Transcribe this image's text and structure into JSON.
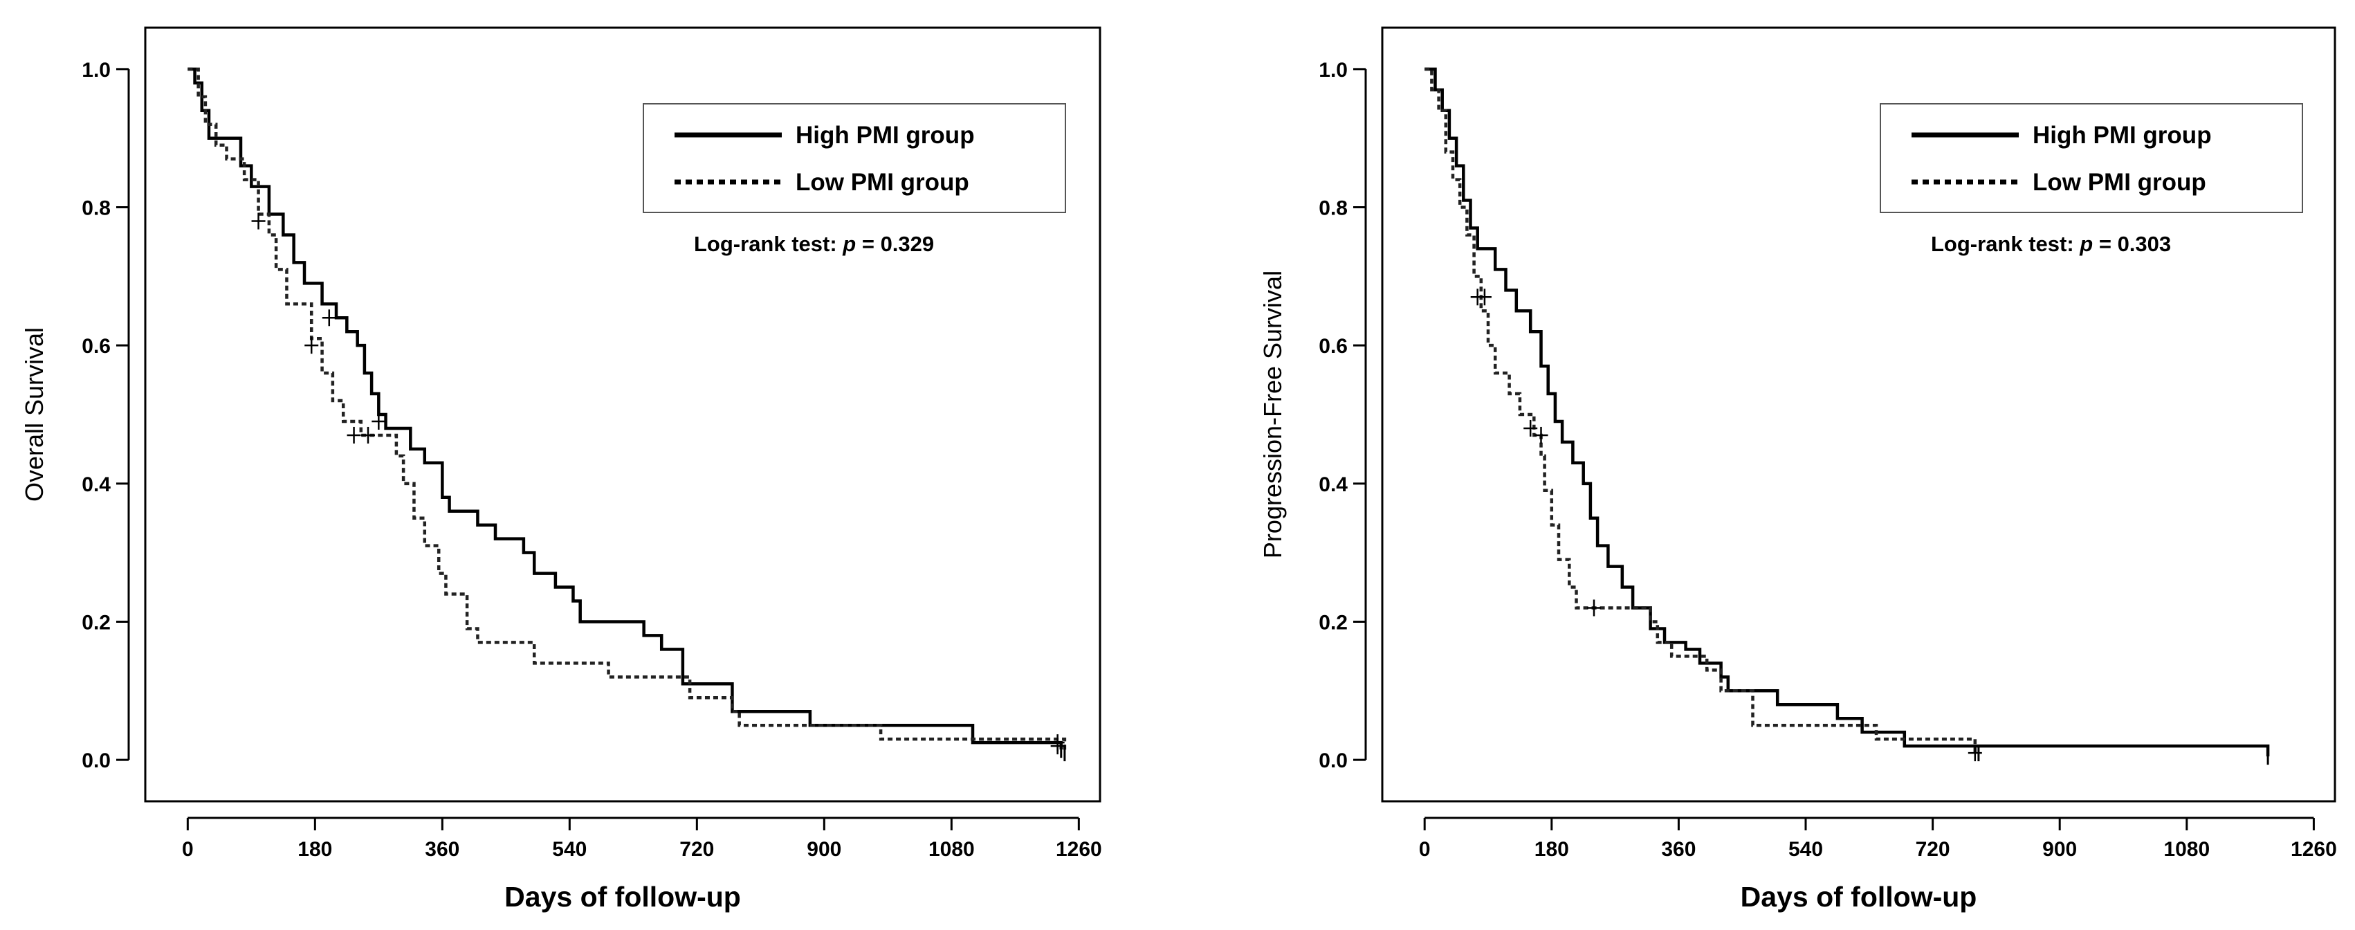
{
  "chart_data": [
    {
      "type": "line",
      "subtype": "kaplan-meier",
      "title": "",
      "xlabel": "Days of follow-up",
      "ylabel": "Overall Survival",
      "xlim": [
        -60,
        1290
      ],
      "ylim": [
        -0.06,
        1.06
      ],
      "xticks": [
        0,
        180,
        360,
        540,
        720,
        900,
        1080,
        1260
      ],
      "yticks": [
        0.0,
        0.2,
        0.4,
        0.6,
        0.8,
        1.0
      ],
      "legend": {
        "placement": "top-right",
        "high_label": "High PMI group",
        "low_label": "Low PMI group"
      },
      "annotation": {
        "prefix": "Log-rank test: ",
        "p": "p",
        "suffix": " = 0.329"
      },
      "series": [
        {
          "name": "High PMI group",
          "style": "solid",
          "steps": [
            [
              0,
              1.0
            ],
            [
              10,
              0.98
            ],
            [
              20,
              0.94
            ],
            [
              30,
              0.9
            ],
            [
              75,
              0.86
            ],
            [
              90,
              0.83
            ],
            [
              115,
              0.79
            ],
            [
              135,
              0.76
            ],
            [
              150,
              0.72
            ],
            [
              165,
              0.69
            ],
            [
              190,
              0.66
            ],
            [
              210,
              0.64
            ],
            [
              225,
              0.62
            ],
            [
              240,
              0.6
            ],
            [
              250,
              0.56
            ],
            [
              260,
              0.53
            ],
            [
              270,
              0.5
            ],
            [
              280,
              0.48
            ],
            [
              315,
              0.45
            ],
            [
              335,
              0.43
            ],
            [
              360,
              0.38
            ],
            [
              370,
              0.36
            ],
            [
              410,
              0.34
            ],
            [
              435,
              0.32
            ],
            [
              475,
              0.3
            ],
            [
              490,
              0.27
            ],
            [
              520,
              0.25
            ],
            [
              545,
              0.23
            ],
            [
              555,
              0.2
            ],
            [
              645,
              0.18
            ],
            [
              670,
              0.16
            ],
            [
              700,
              0.11
            ],
            [
              770,
              0.07
            ],
            [
              880,
              0.05
            ],
            [
              1110,
              0.025
            ],
            [
              1235,
              0.015
            ]
          ],
          "end_x": 1235,
          "censored": [
            [
              200,
              0.64
            ],
            [
              270,
              0.49
            ],
            [
              1230,
              0.025
            ]
          ]
        },
        {
          "name": "Low PMI group",
          "style": "dotted",
          "steps": [
            [
              0,
              1.0
            ],
            [
              15,
              0.96
            ],
            [
              25,
              0.92
            ],
            [
              40,
              0.89
            ],
            [
              55,
              0.87
            ],
            [
              80,
              0.84
            ],
            [
              100,
              0.79
            ],
            [
              115,
              0.76
            ],
            [
              125,
              0.71
            ],
            [
              140,
              0.66
            ],
            [
              175,
              0.61
            ],
            [
              190,
              0.56
            ],
            [
              205,
              0.52
            ],
            [
              220,
              0.49
            ],
            [
              245,
              0.47
            ],
            [
              295,
              0.44
            ],
            [
              305,
              0.4
            ],
            [
              320,
              0.35
            ],
            [
              335,
              0.31
            ],
            [
              355,
              0.27
            ],
            [
              365,
              0.24
            ],
            [
              395,
              0.19
            ],
            [
              410,
              0.17
            ],
            [
              490,
              0.14
            ],
            [
              595,
              0.12
            ],
            [
              710,
              0.09
            ],
            [
              770,
              0.07
            ],
            [
              780,
              0.05
            ],
            [
              980,
              0.03
            ],
            [
              1240,
              0.01
            ]
          ],
          "end_x": 1240,
          "censored": [
            [
              100,
              0.78
            ],
            [
              175,
              0.6
            ],
            [
              235,
              0.47
            ],
            [
              255,
              0.47
            ],
            [
              1230,
              0.02
            ]
          ]
        }
      ]
    },
    {
      "type": "line",
      "subtype": "kaplan-meier",
      "title": "",
      "xlabel": "Days of follow-up",
      "ylabel": "Progression-Free Survival",
      "xlim": [
        -60,
        1290
      ],
      "ylim": [
        -0.06,
        1.06
      ],
      "xticks": [
        0,
        180,
        360,
        540,
        720,
        900,
        1080,
        1260
      ],
      "yticks": [
        0.0,
        0.2,
        0.4,
        0.6,
        0.8,
        1.0
      ],
      "legend": {
        "placement": "top-right",
        "high_label": "High PMI group",
        "low_label": "Low PMI group"
      },
      "annotation": {
        "prefix": "Log-rank test: ",
        "p": "p",
        "suffix": " = 0.303"
      },
      "series": [
        {
          "name": "High PMI group",
          "style": "solid",
          "steps": [
            [
              0,
              1.0
            ],
            [
              15,
              0.97
            ],
            [
              25,
              0.94
            ],
            [
              35,
              0.9
            ],
            [
              45,
              0.86
            ],
            [
              55,
              0.81
            ],
            [
              65,
              0.77
            ],
            [
              75,
              0.74
            ],
            [
              100,
              0.71
            ],
            [
              115,
              0.68
            ],
            [
              130,
              0.65
            ],
            [
              150,
              0.62
            ],
            [
              165,
              0.57
            ],
            [
              175,
              0.53
            ],
            [
              185,
              0.49
            ],
            [
              195,
              0.46
            ],
            [
              210,
              0.43
            ],
            [
              225,
              0.4
            ],
            [
              235,
              0.35
            ],
            [
              245,
              0.31
            ],
            [
              260,
              0.28
            ],
            [
              280,
              0.25
            ],
            [
              295,
              0.22
            ],
            [
              320,
              0.19
            ],
            [
              340,
              0.17
            ],
            [
              370,
              0.16
            ],
            [
              390,
              0.14
            ],
            [
              420,
              0.12
            ],
            [
              430,
              0.1
            ],
            [
              500,
              0.08
            ],
            [
              585,
              0.06
            ],
            [
              620,
              0.04
            ],
            [
              680,
              0.02
            ],
            [
              1195,
              0.005
            ]
          ],
          "end_x": 1195,
          "censored": []
        },
        {
          "name": "Low PMI group",
          "style": "dotted",
          "steps": [
            [
              0,
              1.0
            ],
            [
              10,
              0.97
            ],
            [
              20,
              0.94
            ],
            [
              30,
              0.88
            ],
            [
              40,
              0.84
            ],
            [
              50,
              0.8
            ],
            [
              60,
              0.76
            ],
            [
              70,
              0.7
            ],
            [
              80,
              0.65
            ],
            [
              90,
              0.6
            ],
            [
              100,
              0.56
            ],
            [
              120,
              0.53
            ],
            [
              135,
              0.5
            ],
            [
              155,
              0.47
            ],
            [
              165,
              0.44
            ],
            [
              170,
              0.39
            ],
            [
              180,
              0.34
            ],
            [
              190,
              0.29
            ],
            [
              205,
              0.25
            ],
            [
              215,
              0.22
            ],
            [
              320,
              0.2
            ],
            [
              330,
              0.17
            ],
            [
              350,
              0.15
            ],
            [
              400,
              0.13
            ],
            [
              420,
              0.1
            ],
            [
              465,
              0.05
            ],
            [
              640,
              0.03
            ],
            [
              780,
              0.01
            ]
          ],
          "end_x": 785,
          "censored": [
            [
              75,
              0.67
            ],
            [
              85,
              0.67
            ],
            [
              150,
              0.48
            ],
            [
              165,
              0.47
            ],
            [
              240,
              0.22
            ],
            [
              780,
              0.01
            ]
          ]
        }
      ]
    }
  ]
}
